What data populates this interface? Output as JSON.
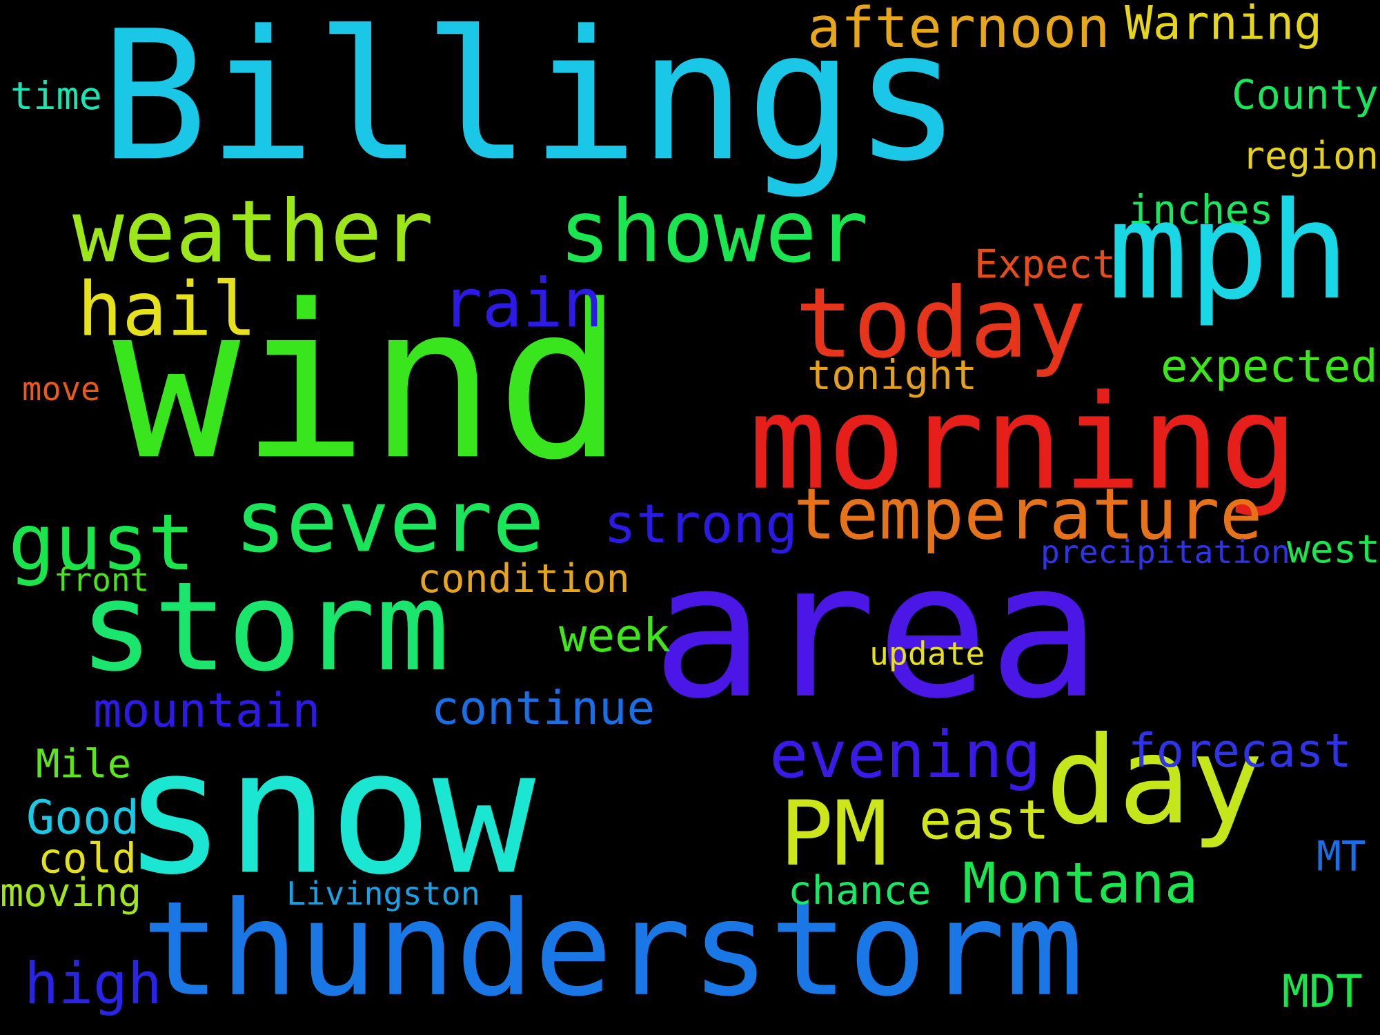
{
  "words": [
    {
      "id": "billings",
      "text": "Billings",
      "color": "#1bc7e6"
    },
    {
      "id": "wind",
      "text": "wind",
      "color": "#39e51c"
    },
    {
      "id": "area",
      "text": "area",
      "color": "#4b17e6"
    },
    {
      "id": "snow",
      "text": "snow",
      "color": "#1ae6d2"
    },
    {
      "id": "thunderstorm",
      "text": "thunderstorm",
      "color": "#1a78e6"
    },
    {
      "id": "morning",
      "text": "morning",
      "color": "#e61f1a"
    },
    {
      "id": "mph",
      "text": "mph",
      "color": "#1ad7e6"
    },
    {
      "id": "weather",
      "text": "weather",
      "color": "#9de61a"
    },
    {
      "id": "shower",
      "text": "shower",
      "color": "#1ae64f"
    },
    {
      "id": "storm",
      "text": "storm",
      "color": "#1ae66e"
    },
    {
      "id": "today",
      "text": "today",
      "color": "#e6351a"
    },
    {
      "id": "day",
      "text": "day",
      "color": "#c4e61a"
    },
    {
      "id": "severe",
      "text": "severe",
      "color": "#1ae65a"
    },
    {
      "id": "temperature",
      "text": "temperature",
      "color": "#e6721a"
    },
    {
      "id": "pm",
      "text": "PM",
      "color": "#cde61a"
    },
    {
      "id": "gust",
      "text": "gust",
      "color": "#1ae64c"
    },
    {
      "id": "rain",
      "text": "rain",
      "color": "#2d1ae6"
    },
    {
      "id": "hail",
      "text": "hail",
      "color": "#e6e11a"
    },
    {
      "id": "evening",
      "text": "evening",
      "color": "#3a1ae6"
    },
    {
      "id": "montana",
      "text": "Montana",
      "color": "#1ae650"
    },
    {
      "id": "strong",
      "text": "strong",
      "color": "#2b1ae6"
    },
    {
      "id": "continue",
      "text": "continue",
      "color": "#1a6fe6"
    },
    {
      "id": "mountain",
      "text": "mountain",
      "color": "#2d1ae6"
    },
    {
      "id": "forecast",
      "text": "forecast",
      "color": "#2f34e6"
    },
    {
      "id": "east",
      "text": "east",
      "color": "#d0e61a"
    },
    {
      "id": "high",
      "text": "high",
      "color": "#2a25e6"
    },
    {
      "id": "afternoon",
      "text": "afternoon",
      "color": "#e6a71a"
    },
    {
      "id": "expected",
      "text": "expected",
      "color": "#3ce61a"
    },
    {
      "id": "week",
      "text": "week",
      "color": "#3ee61a"
    },
    {
      "id": "warning",
      "text": "Warning",
      "color": "#e6d61a"
    },
    {
      "id": "county",
      "text": "County",
      "color": "#1ae65a"
    },
    {
      "id": "good",
      "text": "Good",
      "color": "#1ac9e6"
    },
    {
      "id": "mdt",
      "text": "MDT",
      "color": "#1ae64c"
    },
    {
      "id": "condition",
      "text": "condition",
      "color": "#e6a51a"
    },
    {
      "id": "tonight",
      "text": "tonight",
      "color": "#e6a01a"
    },
    {
      "id": "region",
      "text": "region",
      "color": "#e6d21a"
    },
    {
      "id": "inches",
      "text": "inches",
      "color": "#1ae660"
    },
    {
      "id": "expect",
      "text": "Expect",
      "color": "#e64d1a"
    },
    {
      "id": "chance",
      "text": "chance",
      "color": "#1ae668"
    },
    {
      "id": "cold",
      "text": "cold",
      "color": "#e6e21a"
    },
    {
      "id": "mile",
      "text": "Mile",
      "color": "#5de61a"
    },
    {
      "id": "moving",
      "text": "moving",
      "color": "#a0e61a"
    },
    {
      "id": "mt",
      "text": "MT",
      "color": "#1a6fe6"
    },
    {
      "id": "west",
      "text": "west",
      "color": "#1ae650"
    },
    {
      "id": "time",
      "text": "time",
      "color": "#1ae6b4"
    },
    {
      "id": "update",
      "text": "update",
      "color": "#e6e11a"
    },
    {
      "id": "precipitation",
      "text": "precipitation",
      "color": "#2f34e6"
    },
    {
      "id": "front",
      "text": "front",
      "color": "#46e61a"
    },
    {
      "id": "livingston",
      "text": "Livingston",
      "color": "#1aa2e6"
    },
    {
      "id": "move",
      "text": "move",
      "color": "#e65a1a"
    }
  ]
}
